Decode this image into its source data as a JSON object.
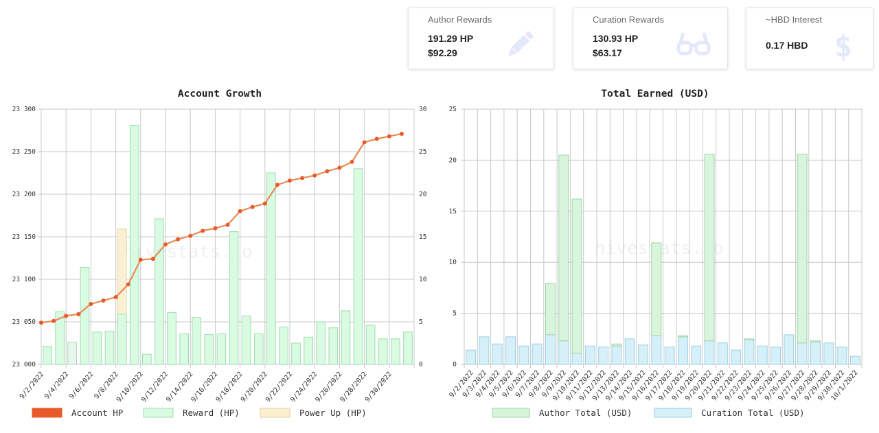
{
  "stats": {
    "author": {
      "title": "Author Rewards",
      "hp": "191.29 HP",
      "usd": "$92.29",
      "icon": "pencil-icon"
    },
    "curation": {
      "title": "Curation Rewards",
      "hp": "130.93 HP",
      "usd": "$63.17",
      "icon": "glasses-icon"
    },
    "interest": {
      "title": "~HBD Interest",
      "value": "0.17 HBD",
      "icon": "dollar-icon"
    }
  },
  "watermark": "hivestats.io",
  "chart_data": [
    {
      "type": "bar",
      "title": "Account Growth",
      "x": [
        "9/2/2022",
        "9/3/2022",
        "9/4/2022",
        "9/5/2022",
        "9/6/2022",
        "9/7/2022",
        "9/8/2022",
        "9/9/2022",
        "9/10/2022",
        "9/11/2022",
        "9/12/2022",
        "9/13/2022",
        "9/14/2022",
        "9/15/2022",
        "9/16/2022",
        "9/17/2022",
        "9/18/2022",
        "9/19/2022",
        "9/20/2022",
        "9/21/2022",
        "9/22/2022",
        "9/23/2022",
        "9/24/2022",
        "9/25/2022",
        "9/26/2022",
        "9/27/2022",
        "9/28/2022",
        "9/29/2022",
        "9/30/2022",
        "10/1/2022"
      ],
      "x_tick_labels": [
        "9/2/2022",
        "9/4/2022",
        "9/6/2022",
        "9/8/2022",
        "9/10/2022",
        "9/12/2022",
        "9/14/2022",
        "9/16/2022",
        "9/18/2022",
        "9/20/2022",
        "9/22/2022",
        "9/24/2022",
        "9/26/2022",
        "9/28/2022",
        "9/30/2022"
      ],
      "y_left": {
        "range": [
          23000,
          23300
        ],
        "ticks": [
          23000,
          23050,
          23100,
          23150,
          23200,
          23250,
          23300
        ],
        "tick_labels": [
          "23 000",
          "23 050",
          "23 100",
          "23 150",
          "23 200",
          "23 250",
          "23 300"
        ]
      },
      "y_right": {
        "range": [
          0,
          30
        ],
        "ticks": [
          0,
          5,
          10,
          15,
          20,
          25,
          30
        ]
      },
      "grid": true,
      "legend_position": "bottom",
      "series": [
        {
          "name": "Account HP",
          "type": "line",
          "axis": "left",
          "color": "#e85a2a",
          "values": [
            23049,
            23051,
            23057,
            23059,
            23071,
            23075,
            23079,
            23094,
            23123,
            23124,
            23141,
            23147,
            23151,
            23157,
            23160,
            23164,
            23180,
            23185,
            23189,
            23211,
            23216,
            23219,
            23222,
            23227,
            23231,
            23238,
            23261,
            23265,
            23268,
            23271
          ]
        },
        {
          "name": "Reward (HP)",
          "type": "bar",
          "axis": "right",
          "color": "#d8fbe2",
          "stroke": "#9fdcb0",
          "values": [
            2.1,
            6.2,
            2.6,
            11.4,
            3.8,
            3.9,
            5.9,
            28.1,
            1.2,
            17.1,
            6.1,
            3.6,
            5.5,
            3.5,
            3.6,
            15.6,
            5.7,
            3.6,
            22.5,
            4.4,
            2.5,
            3.2,
            5.0,
            4.3,
            6.3,
            23.0,
            4.6,
            3.0,
            3.0,
            3.8
          ]
        },
        {
          "name": "Power Up (HP)",
          "type": "bar",
          "axis": "right",
          "color": "#faf0d2",
          "stroke": "#e2d09c",
          "values": [
            0,
            0,
            0,
            0,
            0,
            0,
            15.9,
            0,
            0,
            0,
            0,
            0,
            0,
            0,
            0,
            0,
            0,
            0,
            0,
            0,
            0,
            0,
            0,
            0,
            0,
            0,
            0,
            0,
            0,
            0
          ]
        }
      ]
    },
    {
      "type": "bar",
      "stacked": true,
      "title": "Total Earned (USD)",
      "x": [
        "9/2/2022",
        "9/3/2022",
        "9/4/2022",
        "9/5/2022",
        "9/6/2022",
        "9/7/2022",
        "9/8/2022",
        "9/9/2022",
        "9/10/2022",
        "9/11/2022",
        "9/12/2022",
        "9/13/2022",
        "9/14/2022",
        "9/15/2022",
        "9/16/2022",
        "9/17/2022",
        "9/18/2022",
        "9/19/2022",
        "9/20/2022",
        "9/21/2022",
        "9/22/2022",
        "9/23/2022",
        "9/24/2022",
        "9/25/2022",
        "9/26/2022",
        "9/27/2022",
        "9/28/2022",
        "9/29/2022",
        "9/30/2022",
        "10/1/2022"
      ],
      "ylim": [
        0,
        25
      ],
      "y_ticks": [
        0,
        5,
        10,
        15,
        20,
        25
      ],
      "grid": true,
      "legend_position": "bottom",
      "series": [
        {
          "name": "Curation Total (USD)",
          "color": "#d6f0fa",
          "stroke": "#9ccfe4",
          "values": [
            1.4,
            2.7,
            2.0,
            2.7,
            1.8,
            2.0,
            2.9,
            2.3,
            1.1,
            1.8,
            1.7,
            1.8,
            2.5,
            1.9,
            2.8,
            1.7,
            2.7,
            1.8,
            2.3,
            2.1,
            1.4,
            2.4,
            1.8,
            1.7,
            2.9,
            2.1,
            2.2,
            2.1,
            1.7,
            0.8
          ]
        },
        {
          "name": "Author Total (USD)",
          "color": "#d8f5dc",
          "stroke": "#9dd6a4",
          "values": [
            0,
            0,
            0,
            0,
            0,
            0,
            5.0,
            18.2,
            15.1,
            0,
            0,
            0.2,
            0,
            0,
            9.1,
            0,
            0.1,
            0,
            18.3,
            0,
            0,
            0.1,
            0,
            0,
            0,
            18.5,
            0.1,
            0,
            0,
            0
          ]
        }
      ]
    }
  ]
}
